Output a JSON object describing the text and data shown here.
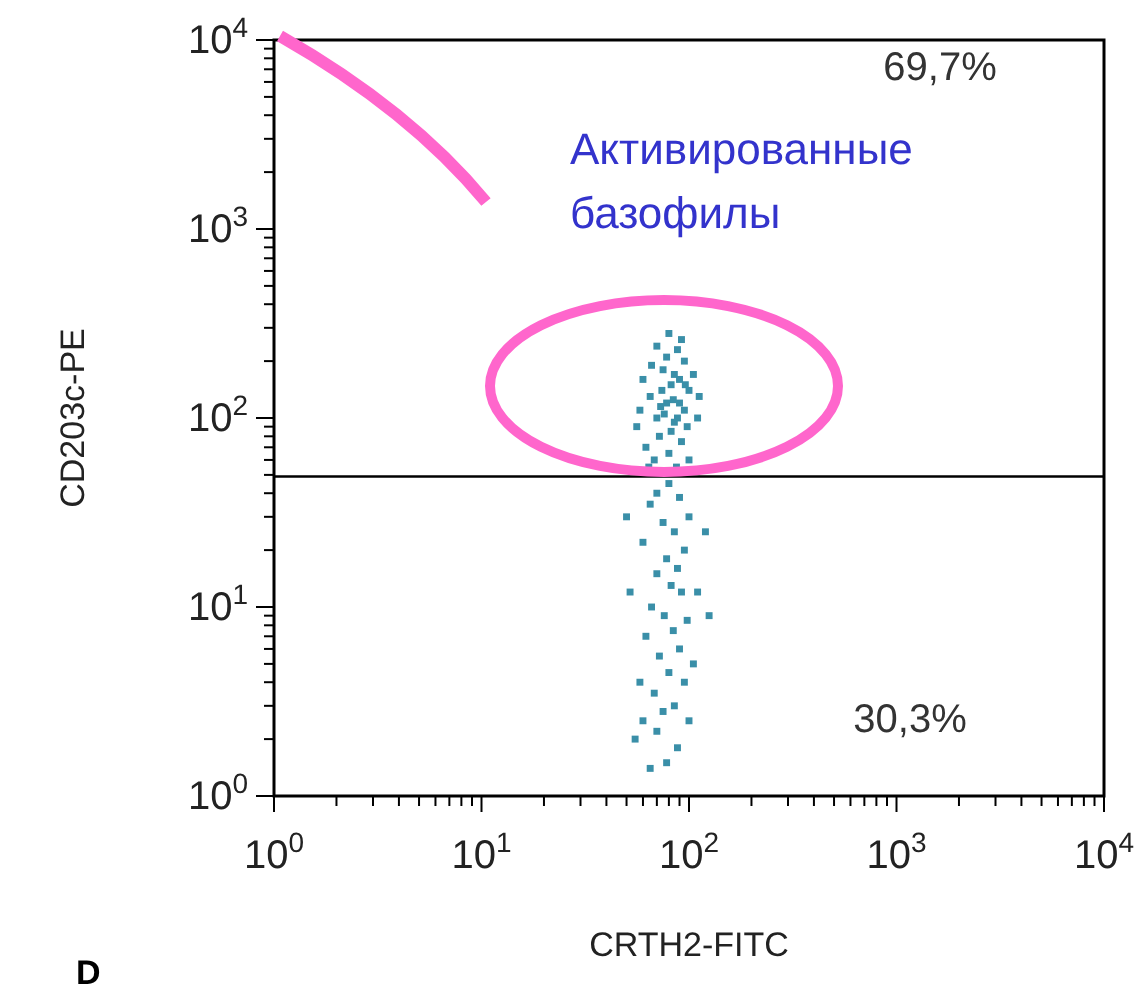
{
  "chart_data": {
    "type": "scatter",
    "xlabel": "CRTH2-FITC",
    "ylabel": "CD203c-PE",
    "log": "xy",
    "grid": false,
    "marker": "square",
    "xlim": [
      1,
      10000
    ],
    "ylim": [
      1,
      10000
    ],
    "xticks": [
      {
        "value": 1,
        "label": "10$^{0}$"
      },
      {
        "value": 10,
        "label": "10$^{1}$"
      },
      {
        "value": 100,
        "label": "10$^{2}$"
      },
      {
        "value": 1000,
        "label": "10$^{3}$"
      },
      {
        "value": 10000,
        "label": "10$^{4}$"
      },
      {
        "value": 2,
        "label": null
      },
      {
        "value": 3,
        "label": null
      },
      {
        "value": 4,
        "label": null
      },
      {
        "value": 5,
        "label": null
      },
      {
        "value": 6,
        "label": null
      },
      {
        "value": 7,
        "label": null
      },
      {
        "value": 8,
        "label": null
      },
      {
        "value": 9,
        "label": null
      },
      {
        "value": 20,
        "label": null
      },
      {
        "value": 30,
        "label": null
      },
      {
        "value": 40,
        "label": null
      },
      {
        "value": 50,
        "label": null
      },
      {
        "value": 60,
        "label": null
      },
      {
        "value": 70,
        "label": null
      },
      {
        "value": 80,
        "label": null
      },
      {
        "value": 90,
        "label": null
      },
      {
        "value": 200,
        "label": null
      },
      {
        "value": 300,
        "label": null
      },
      {
        "value": 400,
        "label": null
      },
      {
        "value": 500,
        "label": null
      },
      {
        "value": 600,
        "label": null
      },
      {
        "value": 700,
        "label": null
      },
      {
        "value": 800,
        "label": null
      },
      {
        "value": 900,
        "label": null
      },
      {
        "value": 2000,
        "label": null
      },
      {
        "value": 3000,
        "label": null
      },
      {
        "value": 4000,
        "label": null
      },
      {
        "value": 5000,
        "label": null
      },
      {
        "value": 6000,
        "label": null
      },
      {
        "value": 7000,
        "label": null
      },
      {
        "value": 8000,
        "label": null
      },
      {
        "value": 9000,
        "label": null
      }
    ],
    "yticks": [
      {
        "value": 1,
        "label": "10$^{0}$"
      },
      {
        "value": 10,
        "label": "10$^{1}$"
      },
      {
        "value": 100,
        "label": "10$^{2}$"
      },
      {
        "value": 1000,
        "label": "10$^{3}$"
      },
      {
        "value": 10000,
        "label": "10$^{4}$"
      },
      {
        "value": 2,
        "label": null
      },
      {
        "value": 3,
        "label": null
      },
      {
        "value": 4,
        "label": null
      },
      {
        "value": 5,
        "label": null
      },
      {
        "value": 6,
        "label": null
      },
      {
        "value": 7,
        "label": null
      },
      {
        "value": 8,
        "label": null
      },
      {
        "value": 9,
        "label": null
      },
      {
        "value": 20,
        "label": null
      },
      {
        "value": 30,
        "label": null
      },
      {
        "value": 40,
        "label": null
      },
      {
        "value": 50,
        "label": null
      },
      {
        "value": 60,
        "label": null
      },
      {
        "value": 70,
        "label": null
      },
      {
        "value": 80,
        "label": null
      },
      {
        "value": 90,
        "label": null
      },
      {
        "value": 200,
        "label": null
      },
      {
        "value": 300,
        "label": null
      },
      {
        "value": 400,
        "label": null
      },
      {
        "value": 500,
        "label": null
      },
      {
        "value": 600,
        "label": null
      },
      {
        "value": 700,
        "label": null
      },
      {
        "value": 800,
        "label": null
      },
      {
        "value": 900,
        "label": null
      },
      {
        "value": 2000,
        "label": null
      },
      {
        "value": 3000,
        "label": null
      },
      {
        "value": 4000,
        "label": null
      },
      {
        "value": 5000,
        "label": null
      },
      {
        "value": 6000,
        "label": null
      },
      {
        "value": 7000,
        "label": null
      },
      {
        "value": 8000,
        "label": null
      },
      {
        "value": 9000,
        "label": null
      }
    ],
    "ref_lines": [
      {
        "axis": "y",
        "value": 49,
        "color": "#000000"
      }
    ],
    "annotations": [
      "69,7%",
      "Активированные базофилы",
      "30,3%",
      "D"
    ],
    "series": [
      {
        "color": "#3a8fa8",
        "x": [
          75,
          82,
          90,
          70,
          85,
          95,
          65,
          100,
          78,
          88,
          60,
          72,
          92,
          80,
          68,
          98,
          105,
          58,
          84,
          76,
          90,
          66,
          110,
          82,
          74,
          95,
          62,
          87,
          100,
          78,
          85,
          70,
          92,
          80,
          56,
          112,
          64,
          96,
          73,
          88,
          80,
          70,
          90,
          65,
          100,
          75,
          85,
          60,
          95,
          78,
          88,
          70,
          82,
          92,
          66,
          76,
          98,
          84,
          62,
          90,
          72,
          105,
          80,
          58,
          95,
          68,
          85,
          75,
          60,
          100,
          70,
          55,
          88,
          78,
          65,
          110,
          125,
          50,
          52,
          120
        ],
        "values": [
          180,
          150,
          120,
          100,
          95,
          110,
          130,
          140,
          210,
          230,
          160,
          80,
          75,
          65,
          60,
          90,
          170,
          110,
          125,
          105,
          160,
          190,
          100,
          85,
          140,
          200,
          70,
          55,
          60,
          120,
          170,
          240,
          260,
          280,
          90,
          130,
          55,
          150,
          115,
          100,
          45,
          40,
          38,
          35,
          30,
          28,
          25,
          22,
          20,
          18,
          16,
          15,
          13,
          12,
          10,
          9,
          8.5,
          7.5,
          7,
          6,
          5.5,
          5,
          4.5,
          4,
          4,
          3.5,
          3,
          2.8,
          2.5,
          2.5,
          2.2,
          2,
          1.8,
          1.5,
          1.4,
          12,
          9,
          30,
          12,
          25
        ]
      }
    ]
  }
}
